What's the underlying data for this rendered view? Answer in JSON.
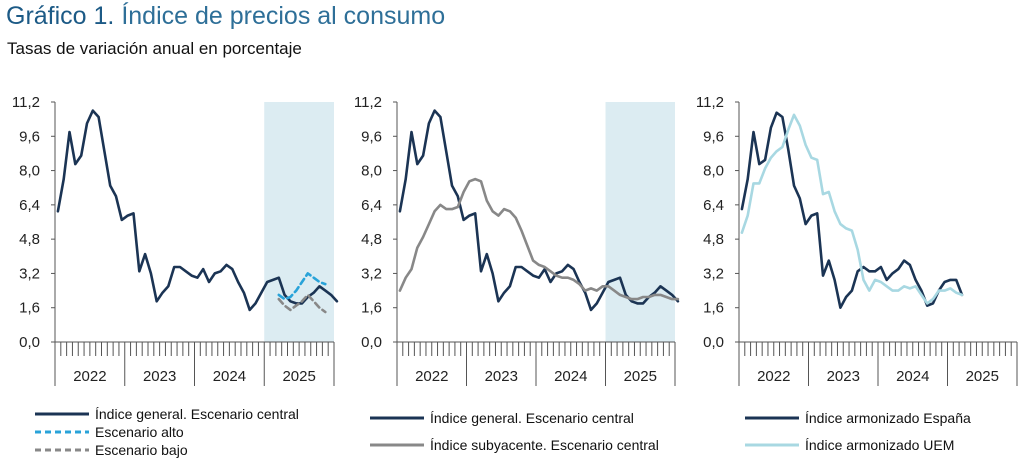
{
  "title": {
    "number": "Gráfico 1.",
    "text": "Índice de precios al consumo"
  },
  "subtitle": "Tasas de variación anual en porcentaje",
  "colors": {
    "central": "#1b3454",
    "alto": "#29a3d9",
    "bajo": "#888888",
    "subyacente": "#888888",
    "uem": "#a8d8e2",
    "shade": "#dcecf2",
    "axis": "#555555"
  },
  "chart_data": [
    {
      "type": "line",
      "x_tick_labels": [
        "2022",
        "2023",
        "2024",
        "2025"
      ],
      "y_ticks": [
        "0,0",
        "1,6",
        "3,2",
        "4,8",
        "6,4",
        "8,0",
        "9,6",
        "11,2"
      ],
      "ylim": [
        0,
        11.2
      ],
      "shaded_period": "2025",
      "series": [
        {
          "name": "Índice general. Escenario central",
          "color_key": "central",
          "dash": false,
          "start_index": 0,
          "values": [
            6.1,
            7.6,
            9.8,
            8.3,
            8.7,
            10.2,
            10.8,
            10.5,
            8.9,
            7.3,
            6.8,
            5.7,
            5.9,
            6.0,
            3.3,
            4.1,
            3.2,
            1.9,
            2.3,
            2.6,
            3.5,
            3.5,
            3.3,
            3.1,
            3.0,
            3.4,
            2.8,
            3.2,
            3.3,
            3.6,
            3.4,
            2.8,
            2.3,
            1.5,
            1.8,
            2.3,
            2.8,
            2.9,
            3.0,
            2.2,
            1.9,
            1.8,
            1.8,
            2.1,
            2.3,
            2.6,
            2.4,
            2.2,
            1.9
          ]
        },
        {
          "name": "Escenario alto",
          "color_key": "alto",
          "dash": true,
          "start_index": 38,
          "values": [
            2.2,
            2.0,
            2.1,
            2.4,
            2.8,
            3.2,
            3.0,
            2.8,
            2.7
          ]
        },
        {
          "name": "Escenario bajo",
          "color_key": "bajo",
          "dash": true,
          "start_index": 38,
          "values": [
            2.0,
            1.7,
            1.5,
            1.7,
            1.9,
            2.2,
            1.9,
            1.6,
            1.4
          ]
        }
      ]
    },
    {
      "type": "line",
      "x_tick_labels": [
        "2022",
        "2023",
        "2024",
        "2025"
      ],
      "y_ticks": [
        "0,0",
        "1,6",
        "3,2",
        "4,8",
        "6,4",
        "8,0",
        "9,6",
        "11,2"
      ],
      "ylim": [
        0,
        11.2
      ],
      "shaded_period": "2025",
      "series": [
        {
          "name": "Índice general. Escenario central",
          "color_key": "central",
          "dash": false,
          "start_index": 0,
          "values": [
            6.1,
            7.6,
            9.8,
            8.3,
            8.7,
            10.2,
            10.8,
            10.5,
            8.9,
            7.3,
            6.8,
            5.7,
            5.9,
            6.0,
            3.3,
            4.1,
            3.2,
            1.9,
            2.3,
            2.6,
            3.5,
            3.5,
            3.3,
            3.1,
            3.0,
            3.4,
            2.8,
            3.2,
            3.3,
            3.6,
            3.4,
            2.8,
            2.3,
            1.5,
            1.8,
            2.3,
            2.8,
            2.9,
            3.0,
            2.2,
            1.9,
            1.8,
            1.8,
            2.1,
            2.3,
            2.6,
            2.4,
            2.2,
            1.9
          ]
        },
        {
          "name": "Índice subyacente. Escenario central",
          "color_key": "subyacente",
          "dash": false,
          "start_index": 0,
          "values": [
            2.4,
            3.0,
            3.4,
            4.4,
            4.9,
            5.5,
            6.1,
            6.4,
            6.2,
            6.2,
            6.3,
            7.0,
            7.5,
            7.6,
            7.5,
            6.6,
            6.1,
            5.9,
            6.2,
            6.1,
            5.8,
            5.2,
            4.5,
            3.8,
            3.6,
            3.5,
            3.3,
            3.1,
            3.0,
            3.0,
            2.9,
            2.7,
            2.4,
            2.5,
            2.4,
            2.6,
            2.6,
            2.4,
            2.2,
            2.1,
            2.0,
            2.0,
            2.1,
            2.1,
            2.2,
            2.2,
            2.1,
            2.0,
            2.0
          ]
        }
      ]
    },
    {
      "type": "line",
      "x_tick_labels": [
        "2022",
        "2023",
        "2024",
        "2025"
      ],
      "y_ticks": [
        "0,0",
        "1,6",
        "3,2",
        "4,8",
        "6,4",
        "8,0",
        "9,6",
        "11,2"
      ],
      "ylim": [
        0,
        11.2
      ],
      "series": [
        {
          "name": "Índice armonizado España",
          "color_key": "central",
          "dash": false,
          "start_index": 0,
          "values": [
            6.2,
            7.6,
            9.8,
            8.3,
            8.5,
            10.0,
            10.7,
            10.5,
            9.0,
            7.3,
            6.7,
            5.5,
            5.9,
            6.0,
            3.1,
            3.8,
            2.9,
            1.6,
            2.1,
            2.4,
            3.3,
            3.5,
            3.3,
            3.3,
            3.5,
            2.9,
            3.2,
            3.4,
            3.8,
            3.6,
            2.9,
            2.4,
            1.7,
            1.8,
            2.4,
            2.8,
            2.9,
            2.9,
            2.2
          ]
        },
        {
          "name": "Índice armonizado UEM",
          "color_key": "uem",
          "dash": false,
          "start_index": 0,
          "values": [
            5.1,
            5.9,
            7.4,
            7.4,
            8.1,
            8.6,
            8.9,
            9.1,
            9.9,
            10.6,
            10.1,
            9.2,
            8.6,
            8.5,
            6.9,
            7.0,
            6.1,
            5.5,
            5.3,
            5.2,
            4.3,
            2.9,
            2.4,
            2.9,
            2.8,
            2.6,
            2.4,
            2.4,
            2.6,
            2.5,
            2.6,
            2.2,
            1.8,
            2.0,
            2.4,
            2.4,
            2.5,
            2.3,
            2.2
          ]
        }
      ]
    }
  ],
  "legends": [
    [
      {
        "label": "Índice general. Escenario central",
        "color_key": "central",
        "dash": false
      },
      {
        "label": "Escenario alto",
        "color_key": "alto",
        "dash": true
      },
      {
        "label": "Escenario bajo",
        "color_key": "bajo",
        "dash": true
      }
    ],
    [
      {
        "label": "Índice general. Escenario central",
        "color_key": "central",
        "dash": false
      },
      {
        "label": "Índice subyacente. Escenario central",
        "color_key": "subyacente",
        "dash": false
      }
    ],
    [
      {
        "label": "Índice armonizado España",
        "color_key": "central",
        "dash": false
      },
      {
        "label": "Índice armonizado UEM",
        "color_key": "uem",
        "dash": false
      }
    ]
  ]
}
